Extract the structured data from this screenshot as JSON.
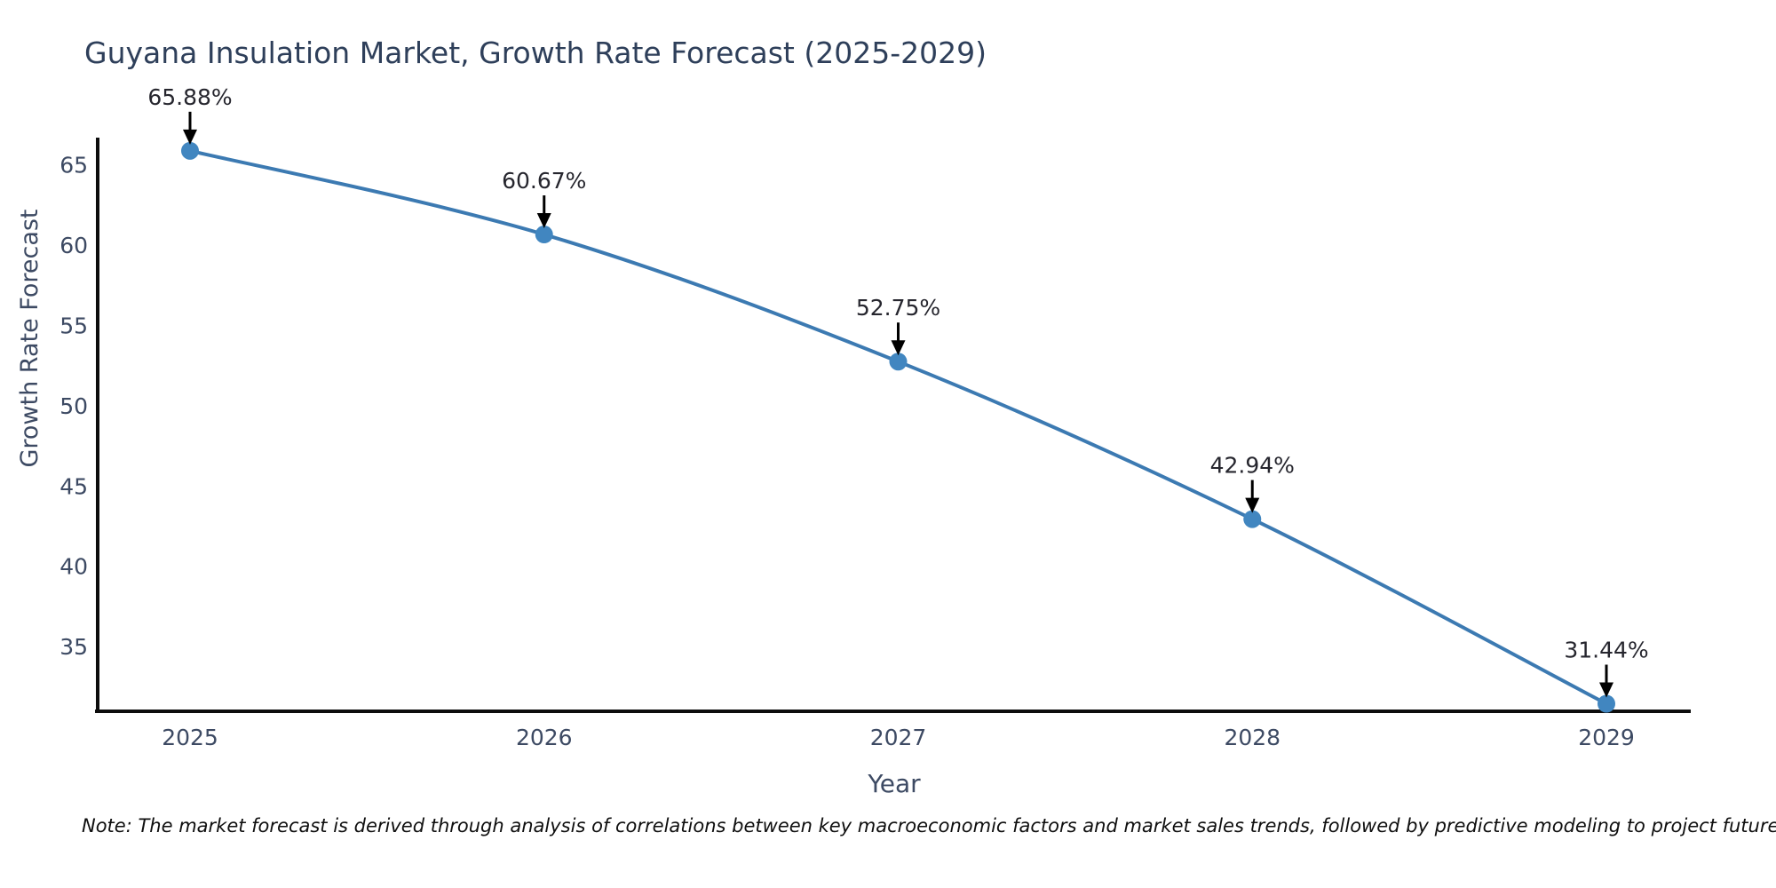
{
  "note": "Note: The market forecast is derived through analysis of correlations between key macroeconomic factors and market sales trends, followed by predictive modeling to project future sales.",
  "chart_data": {
    "type": "line",
    "title": "Guyana Insulation Market, Growth Rate Forecast (2025-2029)",
    "xlabel": "Year",
    "ylabel": "Growth Rate Forecast",
    "categories": [
      "2025",
      "2026",
      "2027",
      "2028",
      "2029"
    ],
    "series": [
      {
        "name": "Growth Rate Forecast",
        "values": [
          65.88,
          60.67,
          52.75,
          42.94,
          31.44
        ]
      }
    ],
    "point_labels": [
      "65.88%",
      "60.67%",
      "52.75%",
      "42.94%",
      "31.44%"
    ],
    "y_ticks": [
      35,
      40,
      45,
      50,
      55,
      60,
      65
    ],
    "ylim": [
      30.97,
      66.7
    ],
    "grid": false,
    "legend": "none",
    "line_shape": "spline",
    "marker": "circle",
    "annotation_arrows": true,
    "colors": {
      "line": "#3c7ab2",
      "marker": "#4186c0",
      "axis_line": "#0d0d0d",
      "title_text": "#2e3f5a",
      "axis_text": "#3d4a63",
      "annotation_text": "#26262e",
      "arrow": "#000000",
      "background": "#ffffff"
    }
  }
}
